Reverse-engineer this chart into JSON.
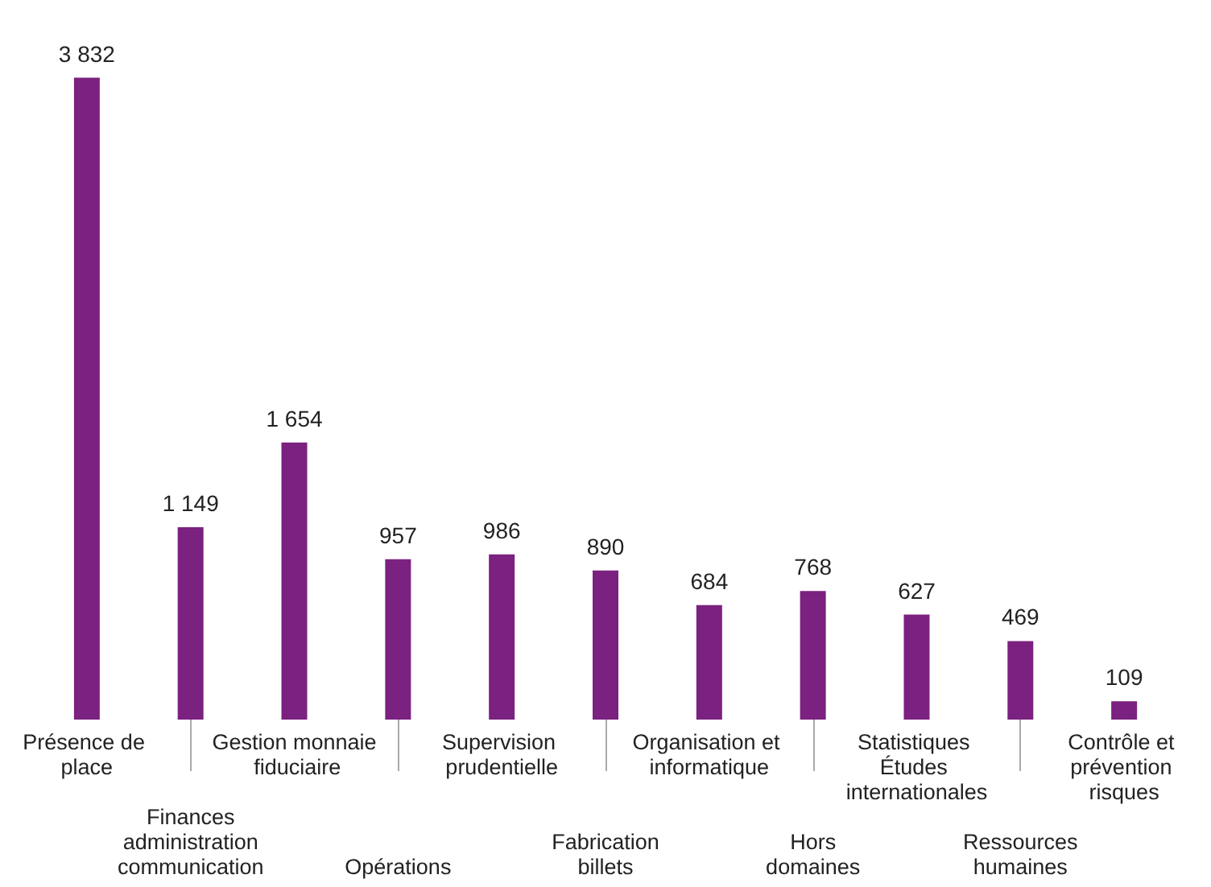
{
  "chart_data": {
    "type": "bar",
    "categories": [
      "Présence de place",
      "Finances administration communication",
      "Gestion monnaie fiduciaire",
      "Opérations",
      "Supervision prudentielle",
      "Fabrication billets",
      "Organisation et informatique",
      "Hors domaines",
      "Statistiques Études internationales",
      "Ressources humaines",
      "Contrôle et prévention risques"
    ],
    "values": [
      3832,
      1149,
      1654,
      957,
      986,
      890,
      684,
      768,
      627,
      469,
      109
    ],
    "value_labels": [
      "3 832",
      "1 149",
      "1 654",
      "957",
      "986",
      "890",
      "684",
      "768",
      "627",
      "469",
      "109"
    ],
    "color": "#7b2180"
  }
}
